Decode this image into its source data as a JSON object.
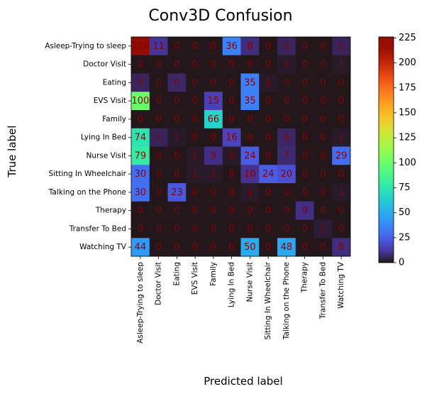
{
  "chart_data": {
    "type": "heatmap",
    "title": "Conv3D Confusion",
    "xlabel": "Predicted label",
    "ylabel": "True label",
    "labels": [
      "Asleep-Trying to sleep",
      "Doctor Visit",
      "Eating",
      "EVS Visit",
      "Family",
      "Lying In Bed",
      "Nurse Visit",
      "Sitting In Wheelchair",
      "Talking on the Phone",
      "Therapy",
      "Transfer To Bed",
      "Watching TV"
    ],
    "matrix": [
      [
        226,
        11,
        0,
        0,
        0,
        36,
        8,
        0,
        5,
        0,
        0,
        5
      ],
      [
        0,
        0,
        0,
        0,
        0,
        0,
        0,
        0,
        1,
        0,
        0,
        1
      ],
      [
        5,
        0,
        6,
        0,
        0,
        0,
        35,
        1,
        0,
        0,
        0,
        0
      ],
      [
        100,
        0,
        0,
        0,
        15,
        0,
        35,
        0,
        0,
        0,
        0,
        0
      ],
      [
        0,
        0,
        0,
        0,
        66,
        0,
        0,
        0,
        0,
        0,
        0,
        0
      ],
      [
        74,
        5,
        1,
        0,
        0,
        16,
        0,
        0,
        6,
        0,
        0,
        1
      ],
      [
        79,
        0,
        0,
        1,
        9,
        1,
        24,
        0,
        7,
        0,
        0,
        29
      ],
      [
        30,
        0,
        0,
        1,
        1,
        0,
        10,
        24,
        20,
        0,
        0,
        0
      ],
      [
        30,
        0,
        23,
        0,
        0,
        0,
        1,
        0,
        0,
        0,
        0,
        1
      ],
      [
        0,
        0,
        0,
        0,
        0,
        0,
        0,
        0,
        0,
        9,
        0,
        0
      ],
      [
        0,
        0,
        0,
        0,
        0,
        0,
        0,
        0,
        0,
        0,
        2,
        0
      ],
      [
        44,
        0,
        0,
        0,
        0,
        0,
        50,
        0,
        48,
        0,
        0,
        8
      ]
    ],
    "colormap": "turbo",
    "colorbar_range": [
      0,
      226
    ],
    "colorbar_ticks": [
      0,
      25,
      50,
      75,
      100,
      125,
      150,
      175,
      200,
      225
    ],
    "annotation_color": "#8b0000"
  }
}
